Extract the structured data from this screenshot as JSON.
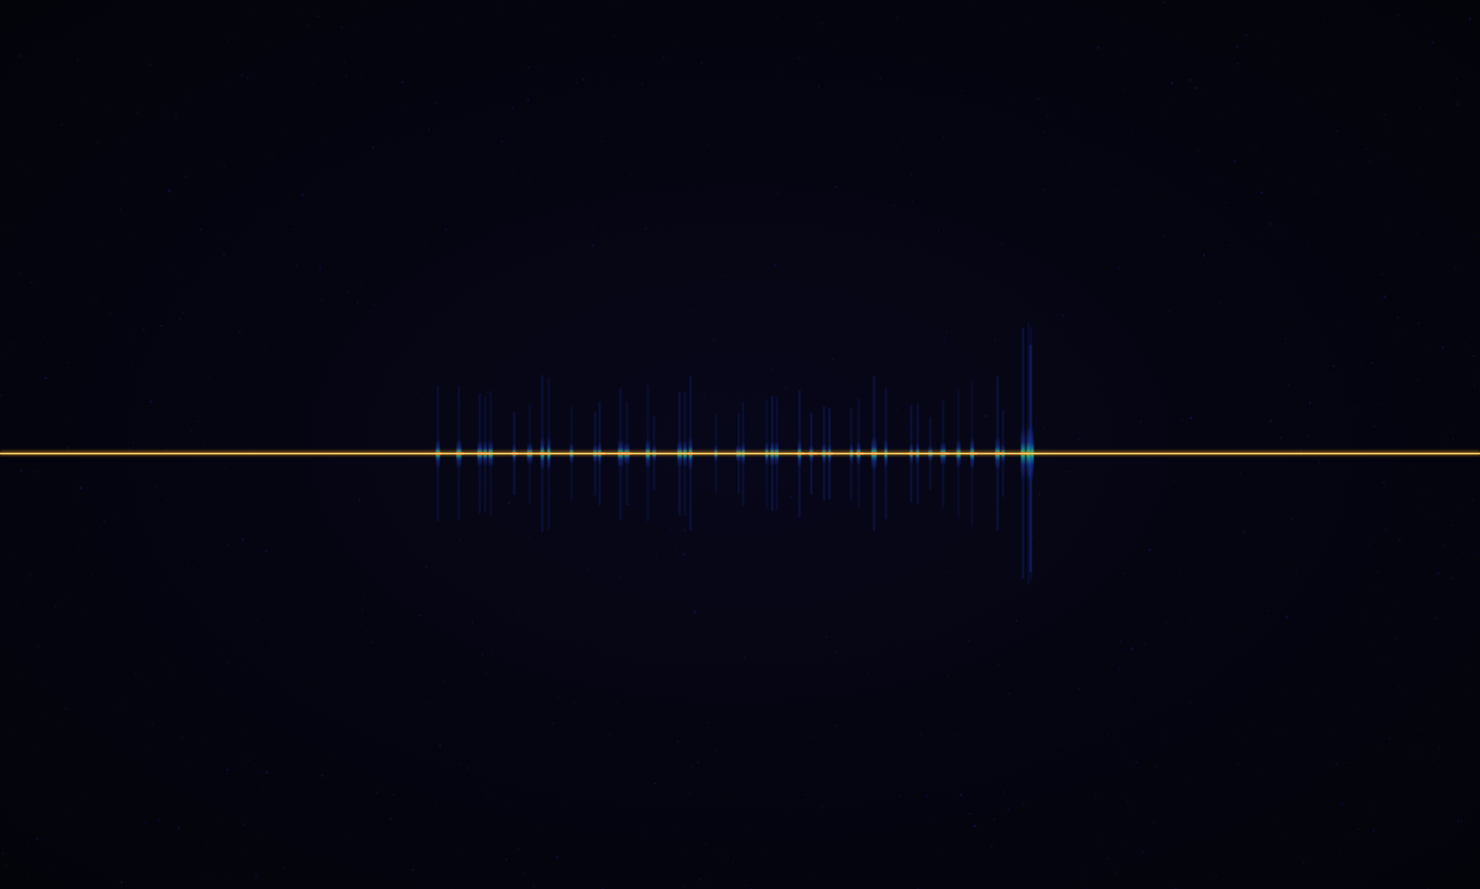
{
  "image": {
    "kind": "waterfall-spectrogram",
    "background_color": "#04040b",
    "carrier_color": "#e8a020",
    "carrier_core_color": "#fff3b0",
    "pulse_colors": {
      "low": "#1a2a8a",
      "mid": "#10a0a0",
      "high": "#20d040",
      "peak": "#d83030"
    },
    "has_visible_text": false
  }
}
